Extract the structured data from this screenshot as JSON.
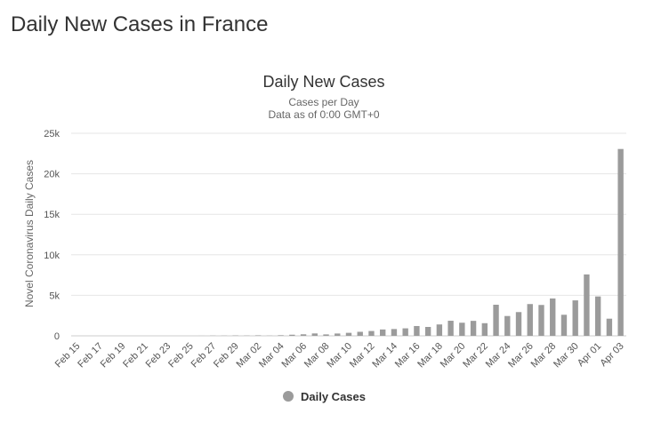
{
  "page": {
    "heading": "Daily New Cases in France"
  },
  "colors": {
    "bar": "#9b9b9b",
    "grid": "#e6e6e6",
    "text": "#333333",
    "axis_text": "#555555"
  },
  "chart_data": {
    "type": "bar",
    "title": "Daily New Cases",
    "subtitle_lines": [
      "Cases per Day",
      "Data as of 0:00 GMT+0"
    ],
    "xlabel": "",
    "ylabel": "Novel Coronavirus Daily Cases",
    "ylim": [
      0,
      25000
    ],
    "yticks": [
      0,
      5000,
      10000,
      15000,
      20000,
      25000
    ],
    "ytick_labels": [
      "0",
      "5k",
      "10k",
      "15k",
      "20k",
      "25k"
    ],
    "grid": true,
    "legend_position": "bottom-center",
    "x_tick_labels": [
      "Feb 15",
      "Feb 17",
      "Feb 19",
      "Feb 21",
      "Feb 23",
      "Feb 25",
      "Feb 27",
      "Feb 29",
      "Mar 02",
      "Mar 04",
      "Mar 06",
      "Mar 08",
      "Mar 10",
      "Mar 12",
      "Mar 14",
      "Mar 16",
      "Mar 18",
      "Mar 20",
      "Mar 22",
      "Mar 24",
      "Mar 26",
      "Mar 28",
      "Mar 30",
      "Apr 01",
      "Apr 03"
    ],
    "categories": [
      "Feb 15",
      "Feb 16",
      "Feb 17",
      "Feb 18",
      "Feb 19",
      "Feb 20",
      "Feb 21",
      "Feb 22",
      "Feb 23",
      "Feb 24",
      "Feb 25",
      "Feb 26",
      "Feb 27",
      "Feb 28",
      "Feb 29",
      "Mar 01",
      "Mar 02",
      "Mar 03",
      "Mar 04",
      "Mar 05",
      "Mar 06",
      "Mar 07",
      "Mar 08",
      "Mar 09",
      "Mar 10",
      "Mar 11",
      "Mar 12",
      "Mar 13",
      "Mar 14",
      "Mar 15",
      "Mar 16",
      "Mar 17",
      "Mar 18",
      "Mar 19",
      "Mar 20",
      "Mar 21",
      "Mar 22",
      "Mar 23",
      "Mar 24",
      "Mar 25",
      "Mar 26",
      "Mar 27",
      "Mar 28",
      "Mar 29",
      "Mar 30",
      "Mar 31",
      "Apr 01",
      "Apr 02",
      "Apr 03"
    ],
    "series": [
      {
        "name": "Daily Cases",
        "values": [
          0,
          0,
          0,
          0,
          0,
          0,
          0,
          0,
          0,
          0,
          0,
          4,
          20,
          19,
          43,
          30,
          61,
          21,
          73,
          138,
          190,
          296,
          177,
          286,
          372,
          497,
          595,
          785,
          838,
          924,
          1210,
          1097,
          1404,
          1861,
          1617,
          1847,
          1559,
          3838,
          2446,
          2931,
          3922,
          3809,
          4611,
          2599,
          4376,
          7578,
          4861,
          2116,
          23060
        ]
      }
    ]
  }
}
